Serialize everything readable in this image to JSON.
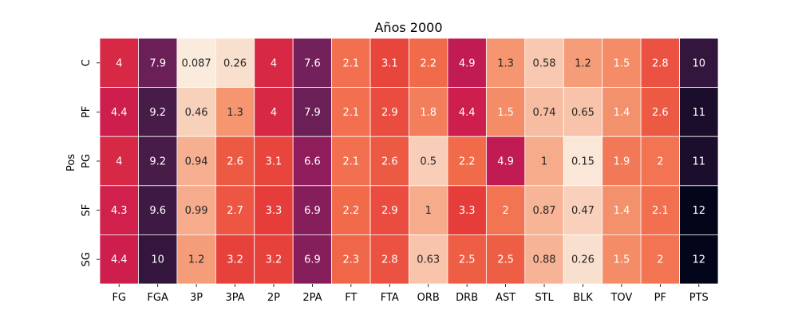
{
  "chart_data": {
    "type": "heatmap",
    "title": "Años 2000",
    "ylabel": "Pos",
    "xlabel": "",
    "columns": [
      "FG",
      "FGA",
      "3P",
      "3PA",
      "2P",
      "2PA",
      "FT",
      "FTA",
      "ORB",
      "DRB",
      "AST",
      "STL",
      "BLK",
      "TOV",
      "PF",
      "PTS"
    ],
    "rows": [
      "C",
      "PF",
      "PG",
      "SF",
      "SG"
    ],
    "values": [
      [
        4.0,
        7.9,
        0.087,
        0.26,
        4.0,
        7.6,
        2.1,
        3.1,
        2.2,
        4.9,
        1.3,
        0.58,
        1.2,
        1.5,
        2.8,
        10
      ],
      [
        4.4,
        9.2,
        0.46,
        1.3,
        4.0,
        7.9,
        2.1,
        2.9,
        1.8,
        4.4,
        1.5,
        0.74,
        0.65,
        1.4,
        2.6,
        11
      ],
      [
        4.0,
        9.2,
        0.94,
        2.6,
        3.1,
        6.6,
        2.1,
        2.6,
        0.5,
        2.2,
        4.9,
        1.0,
        0.15,
        1.9,
        2.0,
        11
      ],
      [
        4.3,
        9.6,
        0.99,
        2.7,
        3.3,
        6.9,
        2.2,
        2.9,
        1.0,
        3.3,
        2.0,
        0.87,
        0.47,
        1.4,
        2.1,
        12
      ],
      [
        4.4,
        10,
        1.2,
        3.2,
        3.2,
        6.9,
        2.3,
        2.8,
        0.63,
        2.5,
        2.5,
        0.88,
        0.26,
        1.5,
        2.0,
        12
      ]
    ],
    "labels": [
      [
        "4",
        "7.9",
        "0.087",
        "0.26",
        "4",
        "7.6",
        "2.1",
        "3.1",
        "2.2",
        "4.9",
        "1.3",
        "0.58",
        "1.2",
        "1.5",
        "2.8",
        "10"
      ],
      [
        "4.4",
        "9.2",
        "0.46",
        "1.3",
        "4",
        "7.9",
        "2.1",
        "2.9",
        "1.8",
        "4.4",
        "1.5",
        "0.74",
        "0.65",
        "1.4",
        "2.6",
        "11"
      ],
      [
        "4",
        "9.2",
        "0.94",
        "2.6",
        "3.1",
        "6.6",
        "2.1",
        "2.6",
        "0.5",
        "2.2",
        "4.9",
        "1",
        "0.15",
        "1.9",
        "2",
        "11"
      ],
      [
        "4.3",
        "9.6",
        "0.99",
        "2.7",
        "3.3",
        "6.9",
        "2.2",
        "2.9",
        "1",
        "3.3",
        "2",
        "0.87",
        "0.47",
        "1.4",
        "2.1",
        "12"
      ],
      [
        "4.4",
        "10",
        "1.2",
        "3.2",
        "3.2",
        "6.9",
        "2.3",
        "2.8",
        "0.63",
        "2.5",
        "2.5",
        "0.88",
        "0.26",
        "1.5",
        "2",
        "12"
      ]
    ],
    "colormap": "rocket",
    "cell_border_color": "#ffffff",
    "grid": false,
    "legend": "none"
  }
}
